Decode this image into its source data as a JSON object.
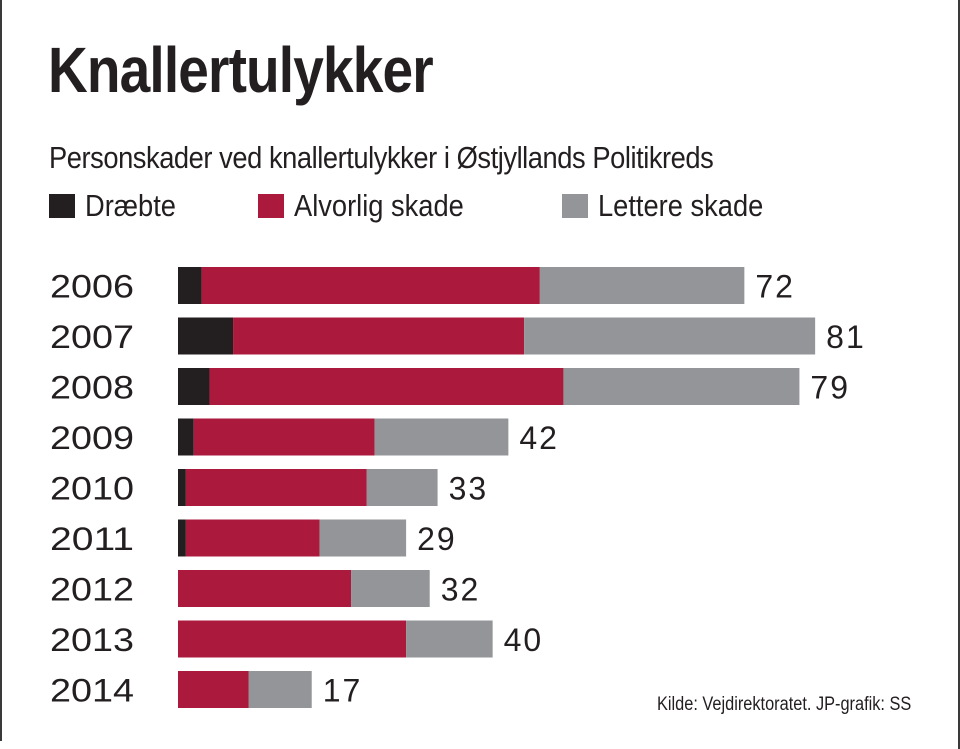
{
  "chart_data": {
    "type": "bar",
    "orientation": "horizontal",
    "stacked": true,
    "title": "Knallertulykker",
    "subtitle": "Personskader ved knallertulykker i Østjyllands Politikreds",
    "xlabel": "",
    "ylabel": "",
    "xlim": [
      0,
      81
    ],
    "grid": false,
    "legend_position": "top-left",
    "categories": [
      "2006",
      "2007",
      "2008",
      "2009",
      "2010",
      "2011",
      "2012",
      "2013",
      "2014"
    ],
    "series": [
      {
        "name": "Dræbte",
        "color": "#231f20",
        "values": [
          3,
          7,
          4,
          2,
          1,
          1,
          0,
          0,
          0
        ]
      },
      {
        "name": "Alvorlig skade",
        "color": "#ab1a3c",
        "values": [
          43,
          37,
          45,
          23,
          23,
          17,
          22,
          29,
          9
        ]
      },
      {
        "name": "Lettere skade",
        "color": "#939598",
        "values": [
          26,
          37,
          30,
          17,
          9,
          11,
          10,
          11,
          8
        ]
      }
    ],
    "totals": [
      "72",
      "81",
      "79",
      "42",
      "33",
      "29",
      "32",
      "40",
      "17"
    ],
    "source": "Kilde: Vejdirektoratet. JP-grafik: SS"
  }
}
